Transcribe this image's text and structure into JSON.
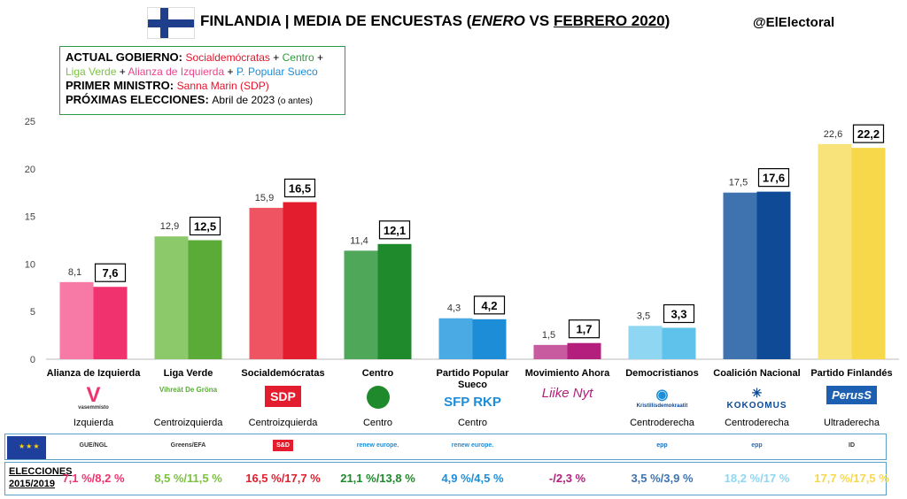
{
  "header": {
    "title_pre": "FINLANDIA | MEDIA DE ENCUESTAS (",
    "title_enero": "ENERO",
    "title_vs": " VS ",
    "title_feb": "FEBRERO 2020",
    "title_post": ")",
    "handle": "@ElElectoral"
  },
  "info": {
    "gov_label": "ACTUAL GOBIERNO: ",
    "gov_parts": [
      "Socialdemócratas",
      " + ",
      "Centro",
      " + ",
      "Liga Verde",
      " + ",
      "Alianza de Izquierda",
      " + ",
      "P. Popular Sueco"
    ],
    "pm_label": "PRIMER MINISTRO: ",
    "pm_value": "Sanna Marin (SDP)",
    "next_label": "PRÓXIMAS ELECCIONES: ",
    "next_value": "Abril de 2023",
    "next_note": "(o antes)"
  },
  "colors": {
    "vas": [
      "#f77aa6",
      "#f0336f"
    ],
    "vihr": [
      "#8bc96a",
      "#5aab38"
    ],
    "sdp": [
      "#ef5462",
      "#e31d2d"
    ],
    "kesk": [
      "#4fa85a",
      "#1f8a2c"
    ],
    "rkp": [
      "#4aaae4",
      "#1d8dd8"
    ],
    "liik": [
      "#c85aa0",
      "#b41e7c"
    ],
    "kd": [
      "#8fd6f2",
      "#5fc2ea"
    ],
    "kok": [
      "#3e73b0",
      "#0e4a96"
    ],
    "ps": [
      "#f8e27a",
      "#f7d84a"
    ]
  },
  "chart_data": {
    "type": "bar",
    "ylim": [
      0,
      25
    ],
    "yticks": [
      0,
      5,
      10,
      15,
      20,
      25
    ],
    "categories": [
      "Alianza de Izquierda",
      "Liga Verde",
      "Socialdemócratas",
      "Centro",
      "Partido Popular Sueco",
      "Movimiento Ahora",
      "Democristianos",
      "Coalición Nacional",
      "Partido Finlandés"
    ],
    "series": [
      {
        "name": "Enero",
        "values": [
          8.1,
          12.9,
          15.9,
          11.4,
          4.3,
          1.5,
          3.5,
          17.5,
          22.6
        ]
      },
      {
        "name": "Febrero 2020",
        "values": [
          7.6,
          12.5,
          16.5,
          12.1,
          4.2,
          1.7,
          3.3,
          17.6,
          22.2
        ]
      }
    ],
    "labels_jan": [
      "8,1",
      "12,9",
      "15,9",
      "11,4",
      "4,3",
      "1,5",
      "3,5",
      "17,5",
      "22,6"
    ],
    "labels_feb": [
      "7,6",
      "12,5",
      "16,5",
      "12,1",
      "4,2",
      "1,7",
      "3,3",
      "17,6",
      "22,2"
    ]
  },
  "parties": [
    {
      "key": "vas",
      "logo": "vasemmisto",
      "ideology": "Izquierda",
      "group": "GUE/NGL",
      "election": "7,1 %/8,2 %",
      "ecolor": "#f0336f"
    },
    {
      "key": "vihr",
      "logo": "Vihreät De Gröna",
      "ideology": "Centroizquierda",
      "group": "Greens/EFA",
      "election": "8,5 %/11,5 %",
      "ecolor": "#7cc242"
    },
    {
      "key": "sdp",
      "logo": "SDP",
      "ideology": "Centroizquierda",
      "group": "S&D",
      "election": "16,5 %/17,7 %",
      "ecolor": "#e31d2d"
    },
    {
      "key": "kesk",
      "logo": "Centro",
      "ideology": "Centro",
      "group": "renew europe.",
      "election": "21,1 %/13,8 %",
      "ecolor": "#1f8a2c"
    },
    {
      "key": "rkp",
      "logo": "SFP RKP",
      "ideology": "Centro",
      "group": "renew europe.",
      "election": "4,9 %/4,5 %",
      "ecolor": "#1d8dd8"
    },
    {
      "key": "liik",
      "logo": "Liike Nyt",
      "ideology": "",
      "group": "",
      "election": "-/2,3 %",
      "ecolor": "#b41e7c"
    },
    {
      "key": "kd",
      "logo": "Kristillisdemokraatit",
      "ideology": "Centroderecha",
      "group": "epp",
      "election": "3,5 %/3,9 %",
      "ecolor": "#3e73b0"
    },
    {
      "key": "kok",
      "logo": "KOKOOMUS",
      "ideology": "Centroderecha",
      "group": "epp",
      "election": "18,2 %/17 %",
      "ecolor": "#8fd6f2"
    },
    {
      "key": "ps",
      "logo": "PerusS",
      "ideology": "Ultraderecha",
      "group": "ID",
      "election": "17,7 %/17,5 %",
      "ecolor": "#f7d84a"
    }
  ],
  "elections_label_1": "ELECCIONES",
  "elections_label_2": "2015/2019"
}
